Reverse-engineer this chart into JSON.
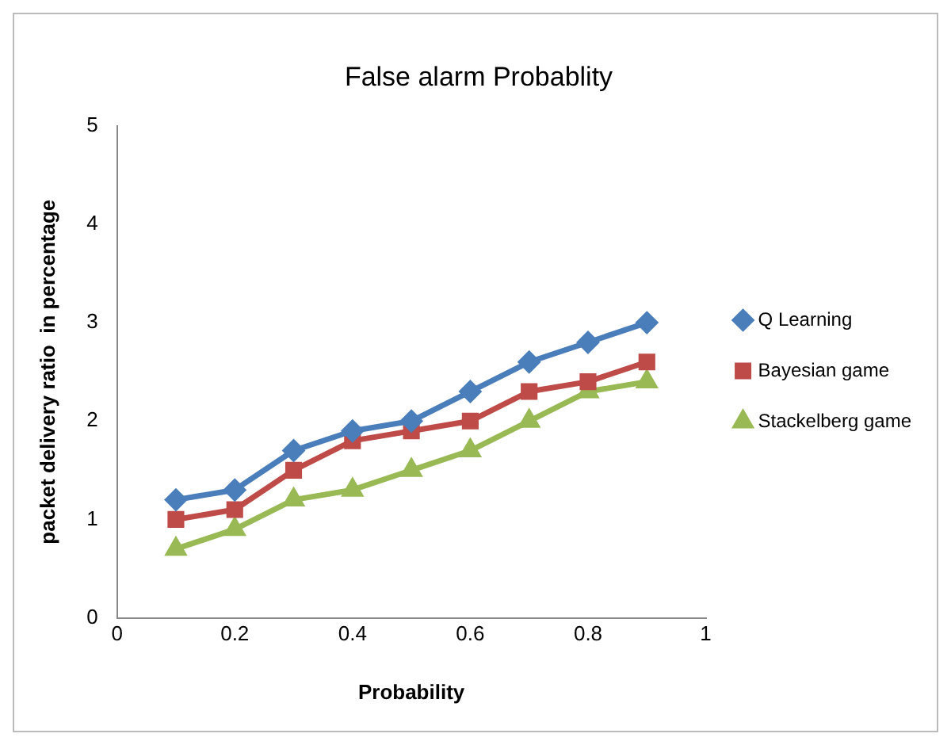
{
  "chart_data": {
    "type": "line",
    "title": "False alarm Probablity",
    "xlabel": "Probability",
    "ylabel": "packet delivery ratio  in percentage",
    "x": [
      0.1,
      0.2,
      0.3,
      0.4,
      0.5,
      0.6,
      0.7,
      0.8,
      0.9
    ],
    "series": [
      {
        "name": "Q Learning",
        "color": "#4a7ebb",
        "marker": "diamond",
        "values": [
          1.2,
          1.3,
          1.7,
          1.9,
          2.0,
          2.3,
          2.6,
          2.8,
          3.0
        ]
      },
      {
        "name": "Bayesian game",
        "color": "#be4b48",
        "marker": "square",
        "values": [
          1.0,
          1.1,
          1.5,
          1.8,
          1.9,
          2.0,
          2.3,
          2.4,
          2.6
        ]
      },
      {
        "name": "Stackelberg game",
        "color": "#98b954",
        "marker": "triangle",
        "values": [
          0.7,
          0.9,
          1.2,
          1.3,
          1.5,
          1.7,
          2.0,
          2.3,
          2.4
        ]
      }
    ],
    "xlim": [
      0,
      1
    ],
    "xticks": [
      0,
      0.2,
      0.4,
      0.6,
      0.8,
      1
    ],
    "ylim": [
      0,
      5
    ],
    "yticks": [
      0,
      1,
      2,
      3,
      4,
      5
    ],
    "grid": false,
    "legend": "right",
    "line_style": "solid"
  }
}
